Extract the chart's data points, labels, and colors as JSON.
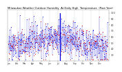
{
  "title": "Milwaukee Weather Outdoor Humidity  At Daily High  Temperature  (Past Year)",
  "title_fontsize": 2.8,
  "background_color": "#ffffff",
  "grid_color": "#bbbbbb",
  "ylim": [
    20,
    105
  ],
  "yticks": [
    30,
    40,
    50,
    60,
    70,
    80,
    90,
    100
  ],
  "ytick_fontsize": 2.5,
  "xtick_fontsize": 2.2,
  "num_days": 365,
  "blue_color": "#0000dd",
  "red_color": "#dd0000",
  "spike_day": 188,
  "num_vgrid_lines": 12,
  "months": [
    "Jan",
    "Feb",
    "Mar",
    "Apr",
    "May",
    "Jun",
    "Jul",
    "Aug",
    "Sep",
    "Oct",
    "Nov",
    "Dec"
  ],
  "month_days": [
    0,
    31,
    59,
    90,
    120,
    151,
    181,
    212,
    243,
    273,
    304,
    334
  ]
}
